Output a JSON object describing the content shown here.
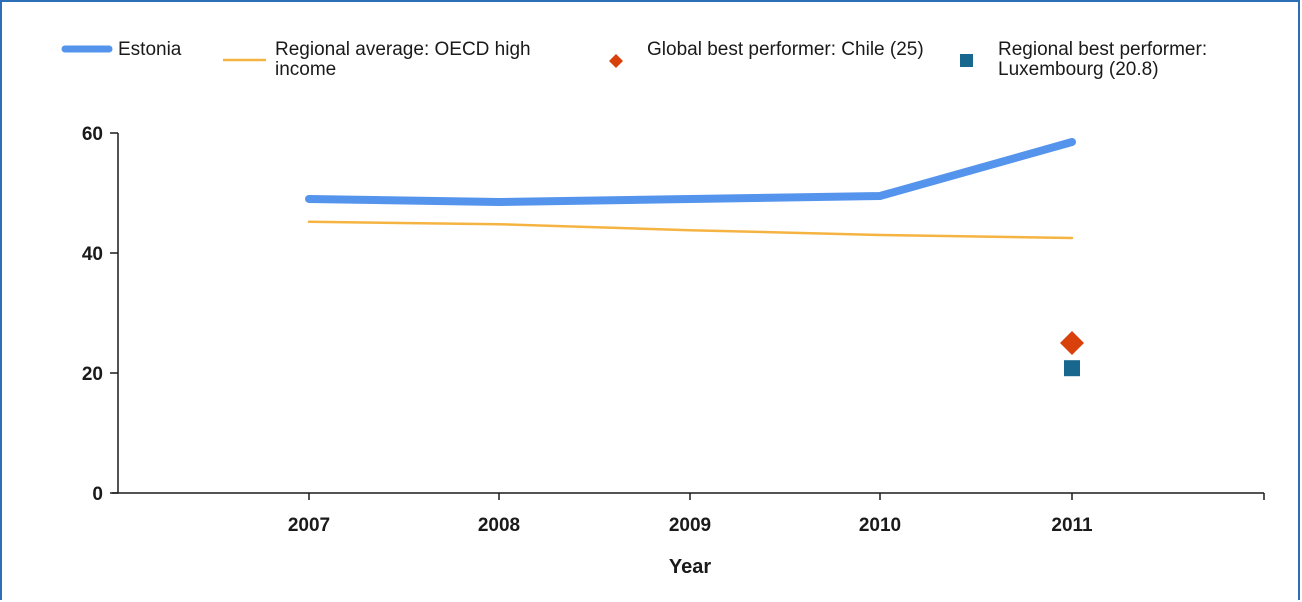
{
  "chart_data": {
    "type": "line",
    "title": "",
    "xlabel": "Year",
    "ylabel": "",
    "categories": [
      "2007",
      "2008",
      "2009",
      "2010",
      "2011"
    ],
    "ylim": [
      0,
      60
    ],
    "yticks": [
      0,
      20,
      40,
      60
    ],
    "grid": false,
    "legend_position": "top",
    "series": [
      {
        "name": "Estonia",
        "kind": "line",
        "color": "#5594ec",
        "values": [
          49,
          48.5,
          49,
          49.5,
          58.5
        ]
      },
      {
        "name": "Regional average: OECD high income",
        "kind": "line",
        "color": "#f5b342",
        "values": [
          45.2,
          44.8,
          43.8,
          43,
          42.5
        ]
      },
      {
        "name": "Global best performer: Chile (25)",
        "kind": "marker-diamond",
        "color": "#d9410c",
        "x": "2011",
        "value": 25
      },
      {
        "name": "Regional best performer: Luxembourg (20.8)",
        "kind": "marker-square",
        "color": "#17678f",
        "x": "2011",
        "value": 20.8
      }
    ]
  },
  "legend": [
    {
      "label": "Estonia"
    },
    {
      "label": "Regional average: OECD high income"
    },
    {
      "label": "Global best performer: Chile (25)"
    },
    {
      "label": "Regional best performer: Luxembourg (20.8)"
    }
  ]
}
